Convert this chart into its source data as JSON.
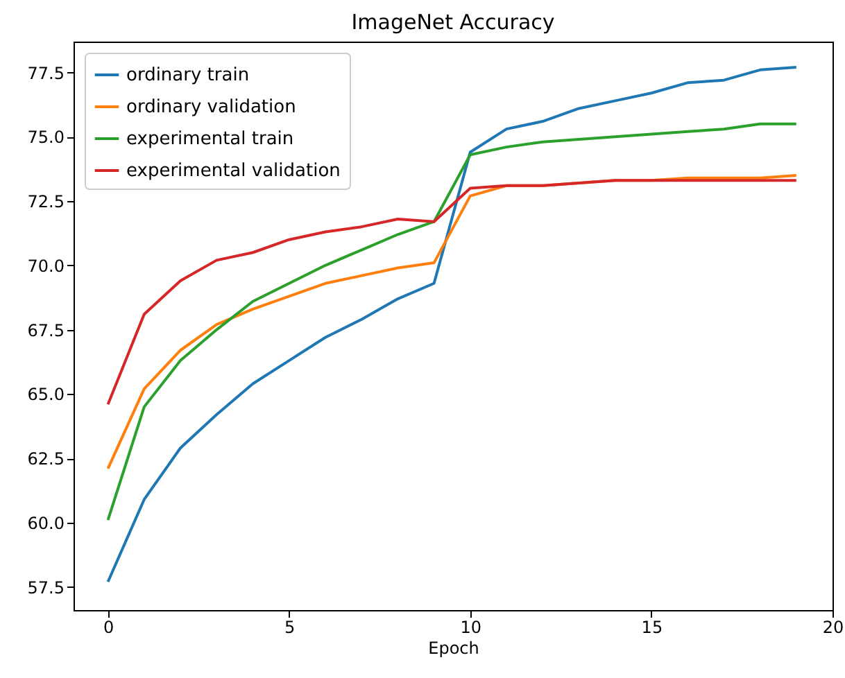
{
  "chart_data": {
    "type": "line",
    "title": "ImageNet Accuracy",
    "xlabel": "Epoch",
    "x": [
      0,
      1,
      2,
      3,
      4,
      5,
      6,
      7,
      8,
      9,
      10,
      11,
      12,
      13,
      14,
      15,
      16,
      17,
      18,
      19
    ],
    "series": [
      {
        "name": "ordinary train",
        "color": "#1f77b4",
        "values": [
          57.7,
          60.9,
          62.9,
          64.2,
          65.4,
          66.3,
          67.2,
          67.9,
          68.7,
          69.3,
          74.4,
          75.3,
          75.6,
          76.1,
          76.4,
          76.7,
          77.1,
          77.2,
          77.6,
          77.7
        ]
      },
      {
        "name": "ordinary validation",
        "color": "#ff7f0e",
        "values": [
          62.1,
          65.2,
          66.7,
          67.7,
          68.3,
          68.8,
          69.3,
          69.6,
          69.9,
          70.1,
          72.7,
          73.1,
          73.1,
          73.2,
          73.3,
          73.3,
          73.4,
          73.4,
          73.4,
          73.5
        ]
      },
      {
        "name": "experimental train",
        "color": "#2ca02c",
        "values": [
          60.1,
          64.5,
          66.3,
          67.5,
          68.6,
          69.3,
          70.0,
          70.6,
          71.2,
          71.7,
          74.3,
          74.6,
          74.8,
          74.9,
          75.0,
          75.1,
          75.2,
          75.3,
          75.5,
          75.5
        ]
      },
      {
        "name": "experimental validation",
        "color": "#d62728",
        "values": [
          64.6,
          68.1,
          69.4,
          70.2,
          70.5,
          71.0,
          71.3,
          71.5,
          71.8,
          71.7,
          73.0,
          73.1,
          73.1,
          73.2,
          73.3,
          73.3,
          73.3,
          73.3,
          73.3,
          73.3
        ]
      }
    ],
    "xlim": [
      -0.95,
      20
    ],
    "xticks": [
      0,
      5,
      10,
      15,
      20
    ],
    "ylim": [
      56.6,
      78.7
    ],
    "yticks": [
      57.5,
      {
        "value": 60,
        "label": "60.0"
      },
      62.5,
      {
        "value": 65,
        "label": "65.0"
      },
      67.5,
      {
        "value": 70,
        "label": "70.0"
      },
      72.5,
      {
        "value": 75,
        "label": "75.0"
      },
      77.5
    ],
    "grid": false,
    "legend": "top left"
  }
}
